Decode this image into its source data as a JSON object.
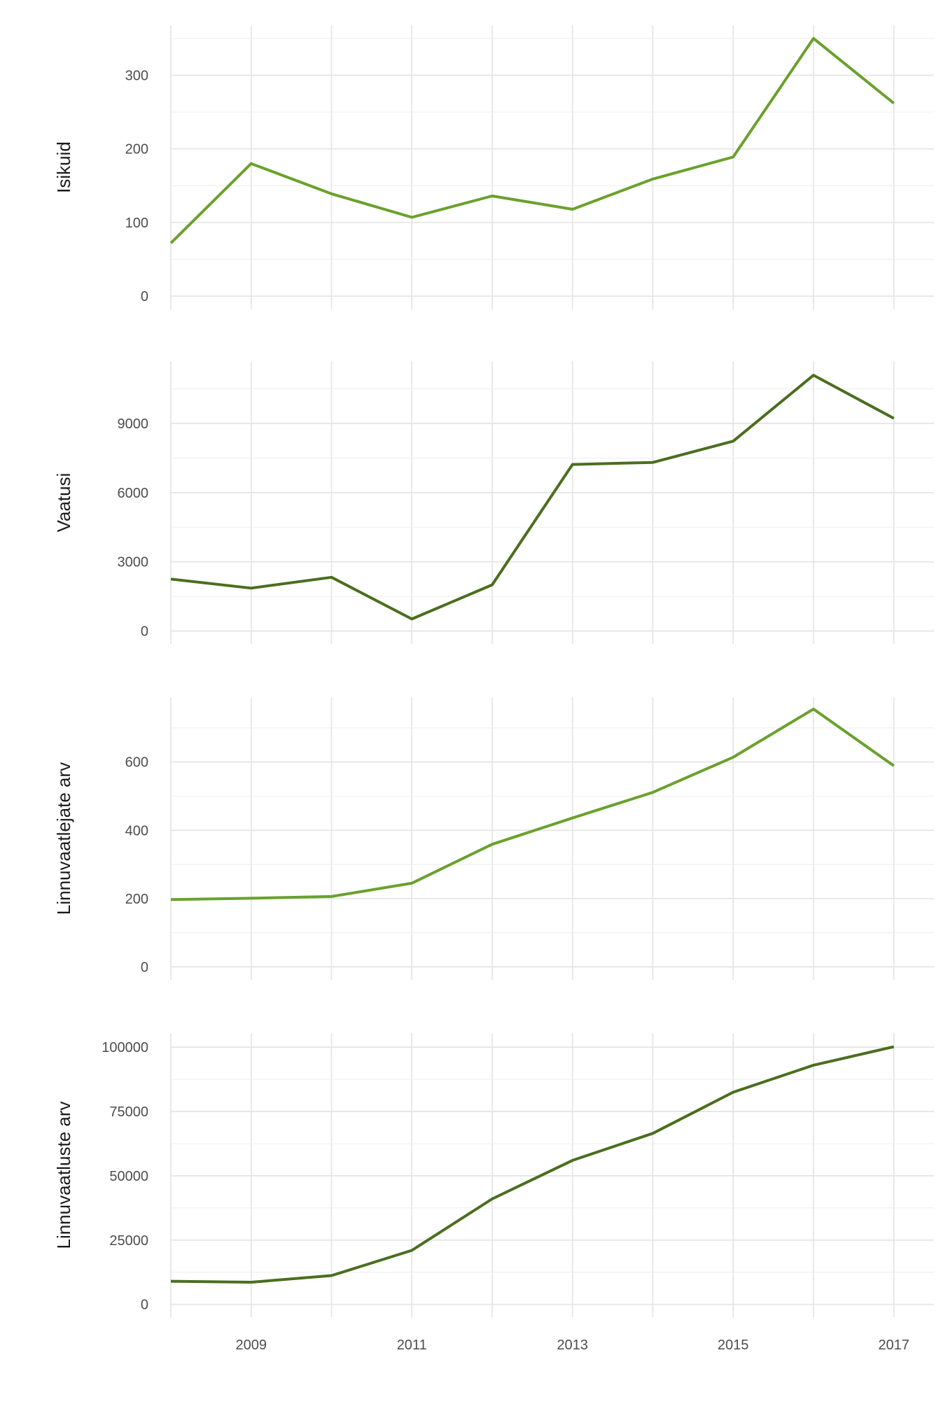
{
  "chart_data": [
    {
      "type": "line",
      "ylabel": "Isikuid",
      "color": "#6aa12c",
      "x": [
        2008,
        2009,
        2010,
        2011,
        2012,
        2013,
        2014,
        2015,
        2016,
        2017
      ],
      "values": [
        72,
        180,
        139,
        107,
        136,
        118,
        159,
        189,
        350,
        262
      ],
      "ylim": [
        -18,
        368
      ],
      "yticks": [
        0,
        100,
        200,
        300
      ],
      "ytick_labels": [
        "0",
        "100",
        "200",
        "300"
      ],
      "grid": true
    },
    {
      "type": "line",
      "ylabel": "Vaatusi",
      "color": "#4a6e1e",
      "x": [
        2008,
        2009,
        2010,
        2011,
        2012,
        2013,
        2014,
        2015,
        2016,
        2017
      ],
      "values": [
        2250,
        1860,
        2330,
        520,
        2000,
        7220,
        7310,
        8230,
        11090,
        9220
      ],
      "ylim": [
        -560,
        11700
      ],
      "yticks": [
        0,
        3000,
        6000,
        9000
      ],
      "ytick_labels": [
        "0",
        "3000",
        "6000",
        "9000"
      ],
      "grid": true
    },
    {
      "type": "line",
      "ylabel": "Linnuvaatlejate arv",
      "color": "#6aa12c",
      "x": [
        2008,
        2009,
        2010,
        2011,
        2012,
        2013,
        2014,
        2015,
        2016,
        2017
      ],
      "values": [
        197,
        201,
        206,
        245,
        359,
        436,
        511,
        614,
        755,
        589
      ],
      "ylim": [
        -38,
        790
      ],
      "yticks": [
        0,
        200,
        400,
        600
      ],
      "ytick_labels": [
        "0",
        "200",
        "400",
        "600"
      ],
      "grid": true
    },
    {
      "type": "line",
      "ylabel": "Linnuvaatluste arv",
      "color": "#4a6e1e",
      "x": [
        2008,
        2009,
        2010,
        2011,
        2012,
        2013,
        2014,
        2015,
        2016,
        2017
      ],
      "values": [
        9000,
        8600,
        11200,
        21000,
        41000,
        56000,
        66500,
        82500,
        93000,
        100200
      ],
      "ylim": [
        -5000,
        105500
      ],
      "yticks": [
        0,
        25000,
        50000,
        75000,
        100000
      ],
      "ytick_labels": [
        "0",
        "25000",
        "50000",
        "75000",
        "100000"
      ],
      "grid": true
    }
  ],
  "x_axis": {
    "xlim": [
      2008,
      2017.5
    ],
    "ticks": [
      2009,
      2011,
      2013,
      2015,
      2017
    ],
    "tick_labels": [
      "2009",
      "2011",
      "2013",
      "2015",
      "2017"
    ]
  }
}
